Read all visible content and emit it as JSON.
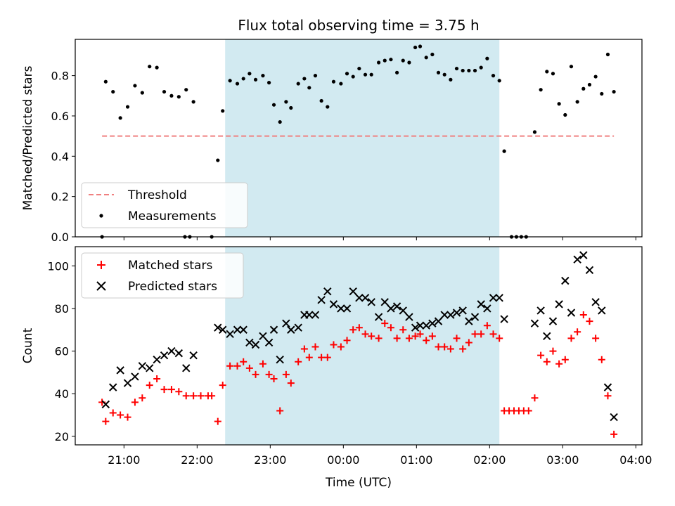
{
  "chart_data": [
    {
      "type": "scatter",
      "title": "Flux total observing time = 3.75 h",
      "ylabel": "Matched/Predicted stars",
      "xlabel": "",
      "xlim": [
        "20:20",
        "04:05"
      ],
      "ylim": [
        0,
        0.98
      ],
      "yticks": [
        "0.0",
        "0.2",
        "0.4",
        "0.6",
        "0.8"
      ],
      "x_tick_times": [
        "21:00",
        "22:00",
        "23:00",
        "00:00",
        "01:00",
        "02:00",
        "03:00",
        "04:00"
      ],
      "x_tick_labels_shown": false,
      "shaded_interval": [
        "22:23",
        "02:08"
      ],
      "shade_color": "#add8e6",
      "legend": {
        "placement": "lower-left",
        "entries": [
          "Threshold",
          "Measurements"
        ]
      },
      "series": [
        {
          "name": "Threshold",
          "style": "dashed-line",
          "color": "#f08080",
          "points": [
            [
              "20:42",
              0.5
            ],
            [
              "03:42",
              0.5
            ]
          ]
        },
        {
          "name": "Measurements",
          "style": "dot",
          "color": "#000000",
          "points": [
            [
              "20:42",
              0.0
            ],
            [
              "20:45",
              0.77
            ],
            [
              "20:51",
              0.72
            ],
            [
              "20:57",
              0.59
            ],
            [
              "21:03",
              0.645
            ],
            [
              "21:09",
              0.75
            ],
            [
              "21:15",
              0.715
            ],
            [
              "21:21",
              0.845
            ],
            [
              "21:27",
              0.84
            ],
            [
              "21:33",
              0.72
            ],
            [
              "21:39",
              0.7
            ],
            [
              "21:45",
              0.695
            ],
            [
              "21:51",
              0.73
            ],
            [
              "21:57",
              0.67
            ],
            [
              "21:50",
              0.0
            ],
            [
              "21:54",
              0.0
            ],
            [
              "22:12",
              0.0
            ],
            [
              "22:17",
              0.38
            ],
            [
              "22:21",
              0.625
            ],
            [
              "22:27",
              0.775
            ],
            [
              "22:33",
              0.76
            ],
            [
              "22:38",
              0.785
            ],
            [
              "22:43",
              0.81
            ],
            [
              "22:48",
              0.78
            ],
            [
              "22:54",
              0.8
            ],
            [
              "22:59",
              0.765
            ],
            [
              "23:03",
              0.655
            ],
            [
              "23:08",
              0.57
            ],
            [
              "23:13",
              0.67
            ],
            [
              "23:17",
              0.64
            ],
            [
              "23:23",
              0.76
            ],
            [
              "23:28",
              0.785
            ],
            [
              "23:32",
              0.74
            ],
            [
              "23:37",
              0.8
            ],
            [
              "23:42",
              0.675
            ],
            [
              "23:47",
              0.645
            ],
            [
              "23:52",
              0.77
            ],
            [
              "23:58",
              0.76
            ],
            [
              "00:03",
              0.81
            ],
            [
              "00:08",
              0.795
            ],
            [
              "00:13",
              0.835
            ],
            [
              "00:18",
              0.805
            ],
            [
              "00:23",
              0.805
            ],
            [
              "00:29",
              0.865
            ],
            [
              "00:34",
              0.875
            ],
            [
              "00:39",
              0.88
            ],
            [
              "00:44",
              0.815
            ],
            [
              "00:49",
              0.875
            ],
            [
              "00:54",
              0.865
            ],
            [
              "00:59",
              0.94
            ],
            [
              "01:03",
              0.945
            ],
            [
              "01:08",
              0.89
            ],
            [
              "01:13",
              0.905
            ],
            [
              "01:18",
              0.815
            ],
            [
              "01:23",
              0.805
            ],
            [
              "01:28",
              0.78
            ],
            [
              "01:33",
              0.835
            ],
            [
              "01:38",
              0.825
            ],
            [
              "01:43",
              0.825
            ],
            [
              "01:48",
              0.825
            ],
            [
              "01:53",
              0.84
            ],
            [
              "01:58",
              0.885
            ],
            [
              "02:03",
              0.8
            ],
            [
              "02:08",
              0.775
            ],
            [
              "02:12",
              0.425
            ],
            [
              "02:18",
              0.0
            ],
            [
              "02:22",
              0.0
            ],
            [
              "02:26",
              0.0
            ],
            [
              "02:30",
              0.0
            ],
            [
              "02:37",
              0.52
            ],
            [
              "02:42",
              0.73
            ],
            [
              "02:47",
              0.82
            ],
            [
              "02:52",
              0.81
            ],
            [
              "02:57",
              0.66
            ],
            [
              "03:02",
              0.605
            ],
            [
              "03:07",
              0.845
            ],
            [
              "03:12",
              0.67
            ],
            [
              "03:17",
              0.735
            ],
            [
              "03:22",
              0.755
            ],
            [
              "03:27",
              0.795
            ],
            [
              "03:32",
              0.71
            ],
            [
              "03:37",
              0.905
            ],
            [
              "03:42",
              0.72
            ]
          ]
        }
      ]
    },
    {
      "type": "scatter",
      "title": "",
      "ylabel": "Count",
      "xlabel": "Time (UTC)",
      "xlim": [
        "20:20",
        "04:05"
      ],
      "ylim": [
        16,
        109
      ],
      "yticks": [
        "20",
        "40",
        "60",
        "80",
        "100"
      ],
      "x_tick_times": [
        "21:00",
        "22:00",
        "23:00",
        "00:00",
        "01:00",
        "02:00",
        "03:00",
        "04:00"
      ],
      "xticks": [
        "21:00",
        "22:00",
        "23:00",
        "00:00",
        "01:00",
        "02:00",
        "03:00",
        "04:00"
      ],
      "shaded_interval": [
        "22:23",
        "02:08"
      ],
      "shade_color": "#add8e6",
      "legend": {
        "placement": "upper-left",
        "entries": [
          "Matched stars",
          "Predicted stars"
        ]
      },
      "series": [
        {
          "name": "Matched stars",
          "style": "plus",
          "color": "#ff0000",
          "points": [
            [
              "20:42",
              36
            ],
            [
              "20:45",
              27
            ],
            [
              "20:51",
              31
            ],
            [
              "20:57",
              30
            ],
            [
              "21:03",
              29
            ],
            [
              "21:09",
              36
            ],
            [
              "21:15",
              38
            ],
            [
              "21:21",
              44
            ],
            [
              "21:27",
              47
            ],
            [
              "21:33",
              42
            ],
            [
              "21:39",
              42
            ],
            [
              "21:45",
              41
            ],
            [
              "21:51",
              39
            ],
            [
              "21:57",
              39
            ],
            [
              "22:03",
              39
            ],
            [
              "22:09",
              39
            ],
            [
              "22:12",
              39
            ],
            [
              "22:17",
              27
            ],
            [
              "22:21",
              44
            ],
            [
              "22:27",
              53
            ],
            [
              "22:33",
              53
            ],
            [
              "22:38",
              55
            ],
            [
              "22:43",
              52
            ],
            [
              "22:48",
              49
            ],
            [
              "22:54",
              54
            ],
            [
              "22:59",
              49
            ],
            [
              "23:03",
              47
            ],
            [
              "23:08",
              32
            ],
            [
              "23:13",
              49
            ],
            [
              "23:17",
              45
            ],
            [
              "23:23",
              55
            ],
            [
              "23:28",
              61
            ],
            [
              "23:32",
              57
            ],
            [
              "23:37",
              62
            ],
            [
              "23:42",
              57
            ],
            [
              "23:47",
              57
            ],
            [
              "23:52",
              63
            ],
            [
              "23:58",
              62
            ],
            [
              "00:03",
              65
            ],
            [
              "00:08",
              70
            ],
            [
              "00:13",
              71
            ],
            [
              "00:18",
              68
            ],
            [
              "00:23",
              67
            ],
            [
              "00:29",
              66
            ],
            [
              "00:34",
              73
            ],
            [
              "00:39",
              71
            ],
            [
              "00:44",
              66
            ],
            [
              "00:49",
              70
            ],
            [
              "00:54",
              66
            ],
            [
              "00:59",
              67
            ],
            [
              "01:03",
              68
            ],
            [
              "01:08",
              65
            ],
            [
              "01:13",
              67
            ],
            [
              "01:18",
              62
            ],
            [
              "01:23",
              62
            ],
            [
              "01:28",
              61
            ],
            [
              "01:33",
              66
            ],
            [
              "01:38",
              61
            ],
            [
              "01:43",
              64
            ],
            [
              "01:48",
              68
            ],
            [
              "01:53",
              68
            ],
            [
              "01:58",
              72
            ],
            [
              "02:03",
              68
            ],
            [
              "02:08",
              66
            ],
            [
              "02:12",
              32
            ],
            [
              "02:16",
              32
            ],
            [
              "02:20",
              32
            ],
            [
              "02:24",
              32
            ],
            [
              "02:28",
              32
            ],
            [
              "02:32",
              32
            ],
            [
              "02:37",
              38
            ],
            [
              "02:42",
              58
            ],
            [
              "02:47",
              55
            ],
            [
              "02:52",
              60
            ],
            [
              "02:57",
              54
            ],
            [
              "03:02",
              56
            ],
            [
              "03:07",
              66
            ],
            [
              "03:12",
              69
            ],
            [
              "03:17",
              77
            ],
            [
              "03:22",
              74
            ],
            [
              "03:27",
              66
            ],
            [
              "03:32",
              56
            ],
            [
              "03:37",
              39
            ],
            [
              "03:42",
              21
            ]
          ]
        },
        {
          "name": "Predicted stars",
          "style": "cross",
          "color": "#000000",
          "points": [
            [
              "20:45",
              35
            ],
            [
              "20:51",
              43
            ],
            [
              "20:57",
              51
            ],
            [
              "21:03",
              45
            ],
            [
              "21:09",
              48
            ],
            [
              "21:15",
              53
            ],
            [
              "21:21",
              52
            ],
            [
              "21:27",
              56
            ],
            [
              "21:33",
              58
            ],
            [
              "21:39",
              60
            ],
            [
              "21:45",
              59
            ],
            [
              "21:51",
              52
            ],
            [
              "21:57",
              58
            ],
            [
              "22:17",
              71
            ],
            [
              "22:21",
              70
            ],
            [
              "22:27",
              68
            ],
            [
              "22:33",
              70
            ],
            [
              "22:38",
              70
            ],
            [
              "22:43",
              64
            ],
            [
              "22:48",
              63
            ],
            [
              "22:54",
              67
            ],
            [
              "22:59",
              64
            ],
            [
              "23:03",
              70
            ],
            [
              "23:08",
              56
            ],
            [
              "23:13",
              73
            ],
            [
              "23:17",
              70
            ],
            [
              "23:23",
              71
            ],
            [
              "23:28",
              77
            ],
            [
              "23:32",
              77
            ],
            [
              "23:37",
              77
            ],
            [
              "23:42",
              84
            ],
            [
              "23:47",
              88
            ],
            [
              "23:52",
              82
            ],
            [
              "23:58",
              80
            ],
            [
              "00:03",
              80
            ],
            [
              "00:08",
              88
            ],
            [
              "00:13",
              85
            ],
            [
              "00:18",
              85
            ],
            [
              "00:23",
              83
            ],
            [
              "00:29",
              76
            ],
            [
              "00:34",
              83
            ],
            [
              "00:39",
              80
            ],
            [
              "00:44",
              81
            ],
            [
              "00:49",
              79
            ],
            [
              "00:54",
              76
            ],
            [
              "00:59",
              71
            ],
            [
              "01:03",
              72
            ],
            [
              "01:08",
              72
            ],
            [
              "01:13",
              73
            ],
            [
              "01:18",
              74
            ],
            [
              "01:23",
              77
            ],
            [
              "01:28",
              77
            ],
            [
              "01:33",
              78
            ],
            [
              "01:38",
              79
            ],
            [
              "01:43",
              74
            ],
            [
              "01:48",
              76
            ],
            [
              "01:53",
              82
            ],
            [
              "01:58",
              80
            ],
            [
              "02:03",
              85
            ],
            [
              "02:08",
              85
            ],
            [
              "02:12",
              75
            ],
            [
              "02:37",
              73
            ],
            [
              "02:42",
              79
            ],
            [
              "02:47",
              67
            ],
            [
              "02:52",
              74
            ],
            [
              "02:57",
              82
            ],
            [
              "03:02",
              93
            ],
            [
              "03:07",
              78
            ],
            [
              "03:12",
              103
            ],
            [
              "03:17",
              105
            ],
            [
              "03:22",
              98
            ],
            [
              "03:27",
              83
            ],
            [
              "03:32",
              79
            ],
            [
              "03:37",
              43
            ],
            [
              "03:42",
              29
            ]
          ]
        }
      ]
    }
  ]
}
